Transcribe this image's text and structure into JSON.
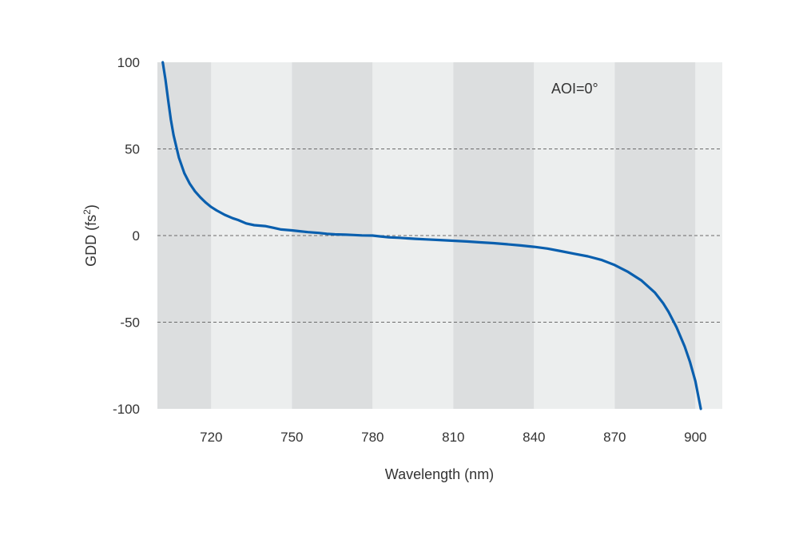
{
  "chart_data": {
    "type": "line",
    "title": "",
    "xlabel": "Wavelength (nm)",
    "ylabel_main": "GDD (fs",
    "ylabel_sup": "2",
    "ylabel_close": ")",
    "xlim": [
      700,
      910
    ],
    "ylim": [
      -100,
      100
    ],
    "xticks": [
      720,
      750,
      780,
      810,
      840,
      870,
      900
    ],
    "xtick_labels": [
      "720",
      "750",
      "780",
      "810",
      "840",
      "870",
      "900"
    ],
    "yticks": [
      100,
      50,
      0,
      -50,
      -100
    ],
    "ytick_labels": [
      "100",
      "50",
      "0",
      "-50",
      "-100"
    ],
    "grid": "horizontal-dashed",
    "background_bands": [
      {
        "x0": 700,
        "x1": 720,
        "shade": "dark"
      },
      {
        "x0": 720,
        "x1": 750,
        "shade": "light"
      },
      {
        "x0": 750,
        "x1": 780,
        "shade": "dark"
      },
      {
        "x0": 780,
        "x1": 810,
        "shade": "light"
      },
      {
        "x0": 810,
        "x1": 840,
        "shade": "dark"
      },
      {
        "x0": 840,
        "x1": 870,
        "shade": "light"
      },
      {
        "x0": 870,
        "x1": 900,
        "shade": "dark"
      },
      {
        "x0": 900,
        "x1": 910,
        "shade": "light"
      }
    ],
    "annotation": "AOI=0°",
    "colors": {
      "line": "#0a5fae",
      "band_dark": "#dcdedf",
      "band_light": "#eceeee",
      "grid": "#6b6b6b"
    },
    "series": [
      {
        "x": [
          702,
          703,
          704,
          705,
          706,
          708,
          710,
          712,
          714,
          716,
          718,
          720,
          722,
          725,
          728,
          730,
          733,
          736,
          740,
          743,
          746,
          750,
          753,
          756,
          760,
          763,
          766,
          770,
          773,
          776,
          780,
          783,
          786,
          790,
          793,
          796,
          800,
          805,
          810,
          815,
          820,
          825,
          830,
          835,
          840,
          845,
          850,
          855,
          860,
          865,
          870,
          875,
          880,
          885,
          888,
          890,
          893,
          896,
          898,
          900,
          902
        ],
        "y": [
          100,
          90,
          78,
          67,
          58,
          45,
          36,
          30,
          25.5,
          22,
          19,
          16.5,
          14.5,
          12,
          10,
          9,
          7,
          6,
          5.5,
          4.5,
          3.5,
          3,
          2.5,
          2,
          1.5,
          1,
          0.7,
          0.5,
          0.3,
          0.1,
          0,
          -0.5,
          -1,
          -1.3,
          -1.6,
          -1.9,
          -2.2,
          -2.6,
          -3,
          -3.4,
          -3.9,
          -4.4,
          -5,
          -5.7,
          -6.5,
          -7.5,
          -9,
          -10.5,
          -12,
          -14,
          -17,
          -21,
          -26,
          -33,
          -39,
          -44,
          -53,
          -64,
          -73,
          -84,
          -100
        ]
      }
    ]
  }
}
